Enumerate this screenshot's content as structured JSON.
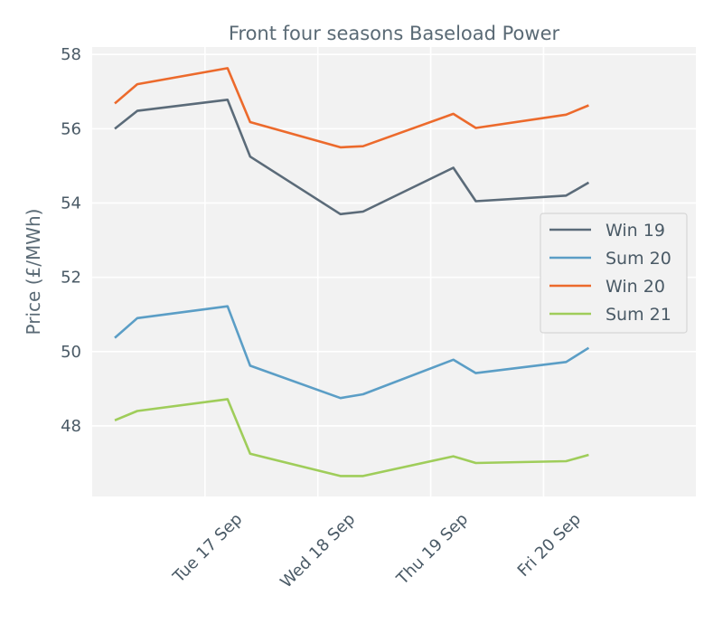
{
  "chart_data": {
    "type": "line",
    "title": "Front four seasons Baseload Power",
    "xlabel": "",
    "ylabel": "Price (£/MWh)",
    "ylim": [
      46.1,
      58.2
    ],
    "yticks": [
      48,
      50,
      52,
      54,
      56,
      58
    ],
    "xlim": [
      0,
      5.35
    ],
    "xticks": [
      {
        "pos": 1,
        "label": "Tue 17 Sep"
      },
      {
        "pos": 2,
        "label": "Wed 18 Sep"
      },
      {
        "pos": 3,
        "label": "Thu 19 Sep"
      },
      {
        "pos": 4,
        "label": "Fri 20 Sep"
      }
    ],
    "x": [
      0.2,
      0.4,
      1.2,
      1.4,
      2.2,
      2.4,
      3.2,
      3.4,
      4.2,
      4.4
    ],
    "grid": true,
    "legend_position": "center-right",
    "series": [
      {
        "name": "Win 19",
        "color": "#5b6b79",
        "values": [
          56.0,
          56.48,
          56.78,
          55.25,
          53.7,
          53.77,
          54.95,
          54.05,
          54.2,
          54.55
        ]
      },
      {
        "name": "Sum 20",
        "color": "#5b9ec6",
        "values": [
          50.37,
          50.9,
          51.22,
          49.62,
          48.75,
          48.85,
          49.78,
          49.42,
          49.72,
          50.1
        ]
      },
      {
        "name": "Win 20",
        "color": "#ec6a2c",
        "values": [
          56.68,
          57.2,
          57.63,
          56.18,
          55.5,
          55.53,
          56.4,
          56.02,
          56.38,
          56.63
        ]
      },
      {
        "name": "Sum 21",
        "color": "#9fcd5a",
        "values": [
          48.15,
          48.4,
          48.72,
          47.25,
          46.65,
          46.65,
          47.18,
          47.0,
          47.05,
          47.22
        ]
      }
    ]
  }
}
